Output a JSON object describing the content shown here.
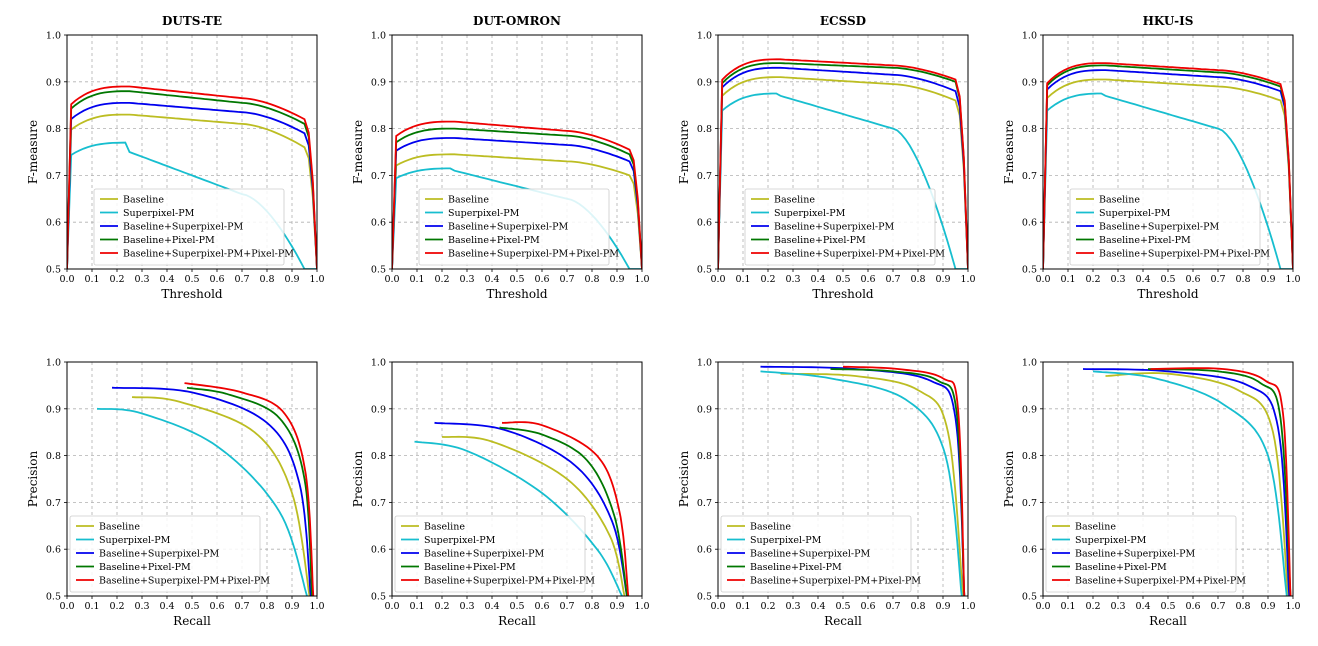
{
  "legend": [
    "Baseline",
    "Superpixel-PM",
    "Baseline+Superpixel-PM",
    "Baseline+Pixel-PM",
    "Baseline+Superpixel-PM+Pixel-PM"
  ],
  "colors": [
    "#bcbd22",
    "#17becf",
    "#0000ee",
    "#007700",
    "#ee0000"
  ],
  "tick_labels": [
    "0.0",
    "0.1",
    "0.2",
    "0.3",
    "0.4",
    "0.5",
    "0.6",
    "0.7",
    "0.8",
    "0.9",
    "1.0"
  ],
  "y_tick_labels": [
    "0.5",
    "0.6",
    "0.7",
    "0.8",
    "0.9",
    "1.0"
  ],
  "chart_data": [
    {
      "type": "line",
      "kind": "fm",
      "title": "DUTS-TE",
      "xlabel": "Threshold",
      "ylabel": "F-measure",
      "xlim": [
        0,
        1
      ],
      "ylim": [
        0.5,
        1.0
      ],
      "legend_loc": "lower center",
      "series": [
        {
          "name": "Baseline",
          "values": [
            0.83,
            0.83,
            0.81,
            0.76
          ]
        },
        {
          "name": "Superpixel-PM",
          "values": [
            0.77,
            0.75,
            0.66,
            0.5
          ]
        },
        {
          "name": "Baseline+Superpixel-PM",
          "values": [
            0.855,
            0.855,
            0.835,
            0.79
          ]
        },
        {
          "name": "Baseline+Pixel-PM",
          "values": [
            0.88,
            0.88,
            0.855,
            0.81
          ]
        },
        {
          "name": "Baseline+Superpixel-PM+Pixel-PM",
          "values": [
            0.89,
            0.89,
            0.865,
            0.82
          ]
        }
      ]
    },
    {
      "type": "line",
      "kind": "fm",
      "title": "DUT-OMRON",
      "xlabel": "Threshold",
      "ylabel": "F-measure",
      "xlim": [
        0,
        1
      ],
      "ylim": [
        0.5,
        1.0
      ],
      "legend_loc": "lower center",
      "series": [
        {
          "name": "Baseline",
          "values": [
            0.745,
            0.745,
            0.73,
            0.7
          ]
        },
        {
          "name": "Superpixel-PM",
          "values": [
            0.715,
            0.71,
            0.65,
            0.5
          ]
        },
        {
          "name": "Baseline+Superpixel-PM",
          "values": [
            0.78,
            0.78,
            0.765,
            0.73
          ]
        },
        {
          "name": "Baseline+Pixel-PM",
          "values": [
            0.8,
            0.8,
            0.785,
            0.745
          ]
        },
        {
          "name": "Baseline+Superpixel-PM+Pixel-PM",
          "values": [
            0.815,
            0.815,
            0.795,
            0.755
          ]
        }
      ]
    },
    {
      "type": "line",
      "kind": "fm",
      "title": "ECSSD",
      "xlabel": "Threshold",
      "ylabel": "F-measure",
      "xlim": [
        0,
        1
      ],
      "ylim": [
        0.5,
        1.0
      ],
      "legend_loc": "lower center",
      "series": [
        {
          "name": "Baseline",
          "values": [
            0.91,
            0.91,
            0.895,
            0.86
          ]
        },
        {
          "name": "Superpixel-PM",
          "values": [
            0.875,
            0.87,
            0.8,
            0.5
          ]
        },
        {
          "name": "Baseline+Superpixel-PM",
          "values": [
            0.93,
            0.93,
            0.915,
            0.88
          ]
        },
        {
          "name": "Baseline+Pixel-PM",
          "values": [
            0.94,
            0.94,
            0.93,
            0.9
          ]
        },
        {
          "name": "Baseline+Superpixel-PM+Pixel-PM",
          "values": [
            0.948,
            0.948,
            0.935,
            0.905
          ]
        }
      ]
    },
    {
      "type": "line",
      "kind": "fm",
      "title": "HKU-IS",
      "xlabel": "Threshold",
      "ylabel": "F-measure",
      "xlim": [
        0,
        1
      ],
      "ylim": [
        0.5,
        1.0
      ],
      "legend_loc": "lower center",
      "series": [
        {
          "name": "Baseline",
          "values": [
            0.905,
            0.905,
            0.89,
            0.86
          ]
        },
        {
          "name": "Superpixel-PM",
          "values": [
            0.875,
            0.87,
            0.8,
            0.5
          ]
        },
        {
          "name": "Baseline+Superpixel-PM",
          "values": [
            0.925,
            0.925,
            0.91,
            0.88
          ]
        },
        {
          "name": "Baseline+Pixel-PM",
          "values": [
            0.935,
            0.935,
            0.92,
            0.89
          ]
        },
        {
          "name": "Baseline+Superpixel-PM+Pixel-PM",
          "values": [
            0.94,
            0.94,
            0.925,
            0.895
          ]
        }
      ]
    },
    {
      "type": "line",
      "kind": "pr",
      "title": "",
      "xlabel": "Recall",
      "ylabel": "Precision",
      "xlim": [
        0,
        1
      ],
      "ylim": [
        0.5,
        1.0
      ],
      "legend_loc": "lower left",
      "series": [
        {
          "name": "Baseline",
          "values": [
            [
              0.26,
              0.925
            ],
            [
              0.45,
              0.915
            ],
            [
              0.75,
              0.85
            ],
            [
              0.9,
              0.72
            ],
            [
              0.97,
              0.5
            ]
          ]
        },
        {
          "name": "Superpixel-PM",
          "values": [
            [
              0.12,
              0.9
            ],
            [
              0.3,
              0.89
            ],
            [
              0.6,
              0.82
            ],
            [
              0.85,
              0.68
            ],
            [
              0.96,
              0.5
            ]
          ]
        },
        {
          "name": "Baseline+Superpixel-PM",
          "values": [
            [
              0.18,
              0.945
            ],
            [
              0.5,
              0.935
            ],
            [
              0.8,
              0.87
            ],
            [
              0.93,
              0.74
            ],
            [
              0.975,
              0.5
            ]
          ]
        },
        {
          "name": "Baseline+Pixel-PM",
          "values": [
            [
              0.48,
              0.945
            ],
            [
              0.65,
              0.93
            ],
            [
              0.85,
              0.88
            ],
            [
              0.95,
              0.75
            ],
            [
              0.98,
              0.5
            ]
          ]
        },
        {
          "name": "Baseline+Superpixel-PM+Pixel-PM",
          "values": [
            [
              0.47,
              0.955
            ],
            [
              0.7,
              0.935
            ],
            [
              0.87,
              0.89
            ],
            [
              0.955,
              0.76
            ],
            [
              0.985,
              0.5
            ]
          ]
        }
      ]
    },
    {
      "type": "line",
      "kind": "pr",
      "title": "",
      "xlabel": "Recall",
      "ylabel": "Precision",
      "xlim": [
        0,
        1
      ],
      "ylim": [
        0.5,
        1.0
      ],
      "legend_loc": "lower left",
      "series": [
        {
          "name": "Baseline",
          "values": [
            [
              0.2,
              0.84
            ],
            [
              0.4,
              0.83
            ],
            [
              0.7,
              0.75
            ],
            [
              0.87,
              0.63
            ],
            [
              0.93,
              0.5
            ]
          ]
        },
        {
          "name": "Superpixel-PM",
          "values": [
            [
              0.09,
              0.83
            ],
            [
              0.3,
              0.81
            ],
            [
              0.6,
              0.72
            ],
            [
              0.82,
              0.6
            ],
            [
              0.92,
              0.5
            ]
          ]
        },
        {
          "name": "Baseline+Superpixel-PM",
          "values": [
            [
              0.17,
              0.87
            ],
            [
              0.45,
              0.855
            ],
            [
              0.73,
              0.78
            ],
            [
              0.88,
              0.66
            ],
            [
              0.94,
              0.5
            ]
          ]
        },
        {
          "name": "Baseline+Pixel-PM",
          "values": [
            [
              0.43,
              0.86
            ],
            [
              0.6,
              0.845
            ],
            [
              0.78,
              0.79
            ],
            [
              0.89,
              0.67
            ],
            [
              0.94,
              0.5
            ]
          ]
        },
        {
          "name": "Baseline+Superpixel-PM+Pixel-PM",
          "values": [
            [
              0.44,
              0.87
            ],
            [
              0.6,
              0.865
            ],
            [
              0.82,
              0.8
            ],
            [
              0.91,
              0.68
            ],
            [
              0.945,
              0.5
            ]
          ]
        }
      ]
    },
    {
      "type": "line",
      "kind": "pr",
      "title": "",
      "xlabel": "Recall",
      "ylabel": "Precision",
      "xlim": [
        0,
        1
      ],
      "ylim": [
        0.5,
        1.0
      ],
      "legend_loc": "lower left",
      "series": [
        {
          "name": "Baseline",
          "values": [
            [
              0.25,
              0.975
            ],
            [
              0.55,
              0.97
            ],
            [
              0.8,
              0.94
            ],
            [
              0.92,
              0.85
            ],
            [
              0.98,
              0.5
            ]
          ]
        },
        {
          "name": "Superpixel-PM",
          "values": [
            [
              0.17,
              0.98
            ],
            [
              0.45,
              0.965
            ],
            [
              0.75,
              0.92
            ],
            [
              0.91,
              0.8
            ],
            [
              0.975,
              0.5
            ]
          ]
        },
        {
          "name": "Baseline+Superpixel-PM",
          "values": [
            [
              0.17,
              0.99
            ],
            [
              0.55,
              0.985
            ],
            [
              0.85,
              0.96
            ],
            [
              0.95,
              0.88
            ],
            [
              0.985,
              0.5
            ]
          ]
        },
        {
          "name": "Baseline+Pixel-PM",
          "values": [
            [
              0.45,
              0.985
            ],
            [
              0.7,
              0.98
            ],
            [
              0.88,
              0.96
            ],
            [
              0.955,
              0.89
            ],
            [
              0.985,
              0.5
            ]
          ]
        },
        {
          "name": "Baseline+Superpixel-PM+Pixel-PM",
          "values": [
            [
              0.5,
              0.99
            ],
            [
              0.72,
              0.985
            ],
            [
              0.9,
              0.965
            ],
            [
              0.96,
              0.9
            ],
            [
              0.985,
              0.5
            ]
          ]
        }
      ]
    },
    {
      "type": "line",
      "kind": "pr",
      "title": "",
      "xlabel": "Recall",
      "ylabel": "Precision",
      "xlim": [
        0,
        1
      ],
      "ylim": [
        0.5,
        1.0
      ],
      "legend_loc": "lower left",
      "series": [
        {
          "name": "Baseline",
          "values": [
            [
              0.25,
              0.97
            ],
            [
              0.5,
              0.975
            ],
            [
              0.78,
              0.94
            ],
            [
              0.92,
              0.85
            ],
            [
              0.98,
              0.5
            ]
          ]
        },
        {
          "name": "Superpixel-PM",
          "values": [
            [
              0.2,
              0.98
            ],
            [
              0.45,
              0.965
            ],
            [
              0.72,
              0.91
            ],
            [
              0.9,
              0.8
            ],
            [
              0.975,
              0.5
            ]
          ]
        },
        {
          "name": "Baseline+Superpixel-PM",
          "values": [
            [
              0.16,
              0.985
            ],
            [
              0.5,
              0.98
            ],
            [
              0.82,
              0.95
            ],
            [
              0.94,
              0.86
            ],
            [
              0.985,
              0.5
            ]
          ]
        },
        {
          "name": "Baseline+Pixel-PM",
          "values": [
            [
              0.42,
              0.985
            ],
            [
              0.7,
              0.98
            ],
            [
              0.87,
              0.955
            ],
            [
              0.95,
              0.88
            ],
            [
              0.99,
              0.5
            ]
          ]
        },
        {
          "name": "Baseline+Superpixel-PM+Pixel-PM",
          "values": [
            [
              0.43,
              0.985
            ],
            [
              0.72,
              0.985
            ],
            [
              0.89,
              0.96
            ],
            [
              0.96,
              0.89
            ],
            [
              0.99,
              0.5
            ]
          ]
        }
      ]
    }
  ]
}
